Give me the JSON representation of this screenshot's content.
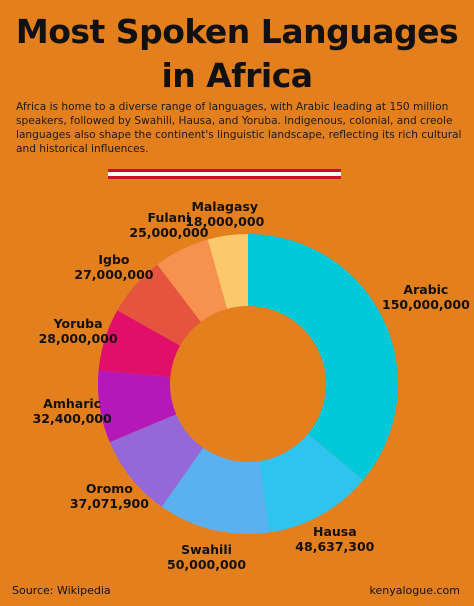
{
  "header": {
    "title_line1": "Most Spoken Languages",
    "title_line2": "in Africa",
    "description": "Africa is home to a diverse range of languages, with Arabic leading at 150 million speakers, followed by Swahili, Hausa, and Yoruba. Indigenous, colonial, and creole languages also shape the continent's linguistic landscape, reflecting its rich cultural and historical influences."
  },
  "chart_data": {
    "type": "pie",
    "variant": "donut",
    "categories": [
      "Arabic",
      "Hausa",
      "Swahili",
      "Oromo",
      "Amharic",
      "Yoruba",
      "Igbo",
      "Fulani",
      "Malagasy"
    ],
    "values": [
      150000000,
      48637300,
      50000000,
      37071900,
      32400000,
      28000000,
      27000000,
      25000000,
      18000000
    ],
    "value_labels": [
      "150,000,000",
      "48,637,300",
      "50,000,000",
      "37,071,900",
      "32,400,000",
      "28,000,000",
      "27,000,000",
      "25,000,000",
      "18,000,000"
    ],
    "colors": [
      "#00C8D8",
      "#2FC3F0",
      "#5BB0F0",
      "#7C8CE8",
      "#9468D8",
      "#B418B8",
      "#E0106A",
      "#E4543E",
      "#F69150",
      "#FBC96A"
    ],
    "legend": "none"
  },
  "footer": {
    "source": "Source: Wikipedia",
    "site": "kenyalogue.com"
  }
}
